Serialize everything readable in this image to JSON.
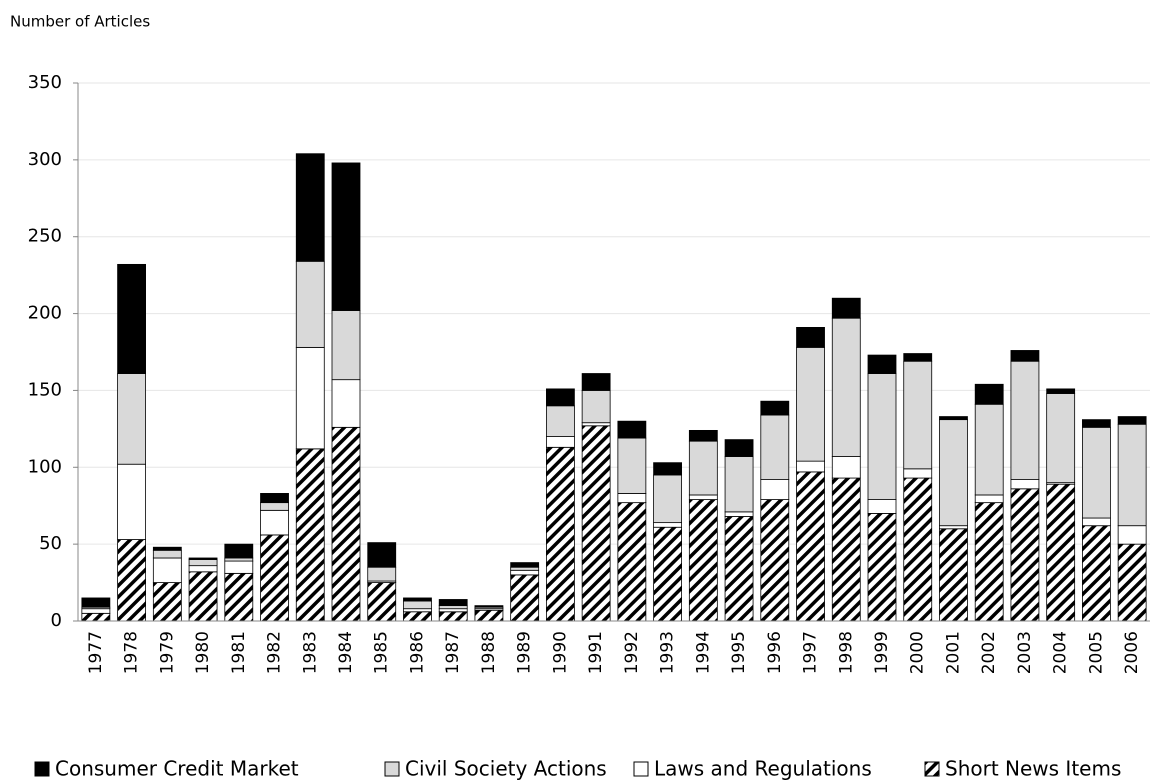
{
  "chart_data": {
    "type": "stacked_bar",
    "y_label": "Number of Articles",
    "categories": [
      "1977",
      "1978",
      "1979",
      "1980",
      "1981",
      "1982",
      "1983",
      "1984",
      "1985",
      "1986",
      "1987",
      "1988",
      "1989",
      "1990",
      "1991",
      "1992",
      "1993",
      "1994",
      "1995",
      "1996",
      "1997",
      "1998",
      "1999",
      "2000",
      "2001",
      "2002",
      "2003",
      "2004",
      "2005",
      "2006"
    ],
    "series": [
      {
        "name": "Consumer Credit Market",
        "color": "#000000",
        "values": [
          6,
          71,
          2,
          1,
          9,
          6,
          70,
          96,
          16,
          2,
          4,
          1,
          3,
          11,
          11,
          11,
          8,
          7,
          11,
          9,
          13,
          13,
          12,
          5,
          2,
          13,
          7,
          3,
          5,
          5
        ]
      },
      {
        "name": "Civil Society Actions",
        "color": "#d9d9d9",
        "values": [
          1,
          59,
          5,
          4,
          2,
          5,
          56,
          45,
          9,
          5,
          2,
          1,
          2,
          20,
          21,
          36,
          31,
          35,
          36,
          42,
          74,
          90,
          82,
          70,
          69,
          59,
          77,
          58,
          59,
          66
        ]
      },
      {
        "name": "Laws and Regulations",
        "color": "#ffffff",
        "values": [
          3,
          49,
          16,
          4,
          8,
          16,
          66,
          31,
          1,
          2,
          2,
          1,
          3,
          7,
          2,
          6,
          3,
          3,
          3,
          13,
          7,
          14,
          9,
          6,
          2,
          5,
          6,
          1,
          5,
          12
        ]
      },
      {
        "name": "Short News Items",
        "color": "#000000",
        "pattern": "hatch",
        "values": [
          5,
          53,
          25,
          32,
          31,
          56,
          112,
          126,
          25,
          6,
          6,
          7,
          30,
          113,
          127,
          77,
          61,
          79,
          68,
          79,
          97,
          93,
          70,
          93,
          60,
          77,
          86,
          89,
          62,
          50
        ]
      }
    ],
    "ylim": [
      0,
      350
    ],
    "yticks": [
      0,
      50,
      100,
      150,
      200,
      250,
      300,
      350
    ],
    "grid": true,
    "legend": "bottom"
  }
}
